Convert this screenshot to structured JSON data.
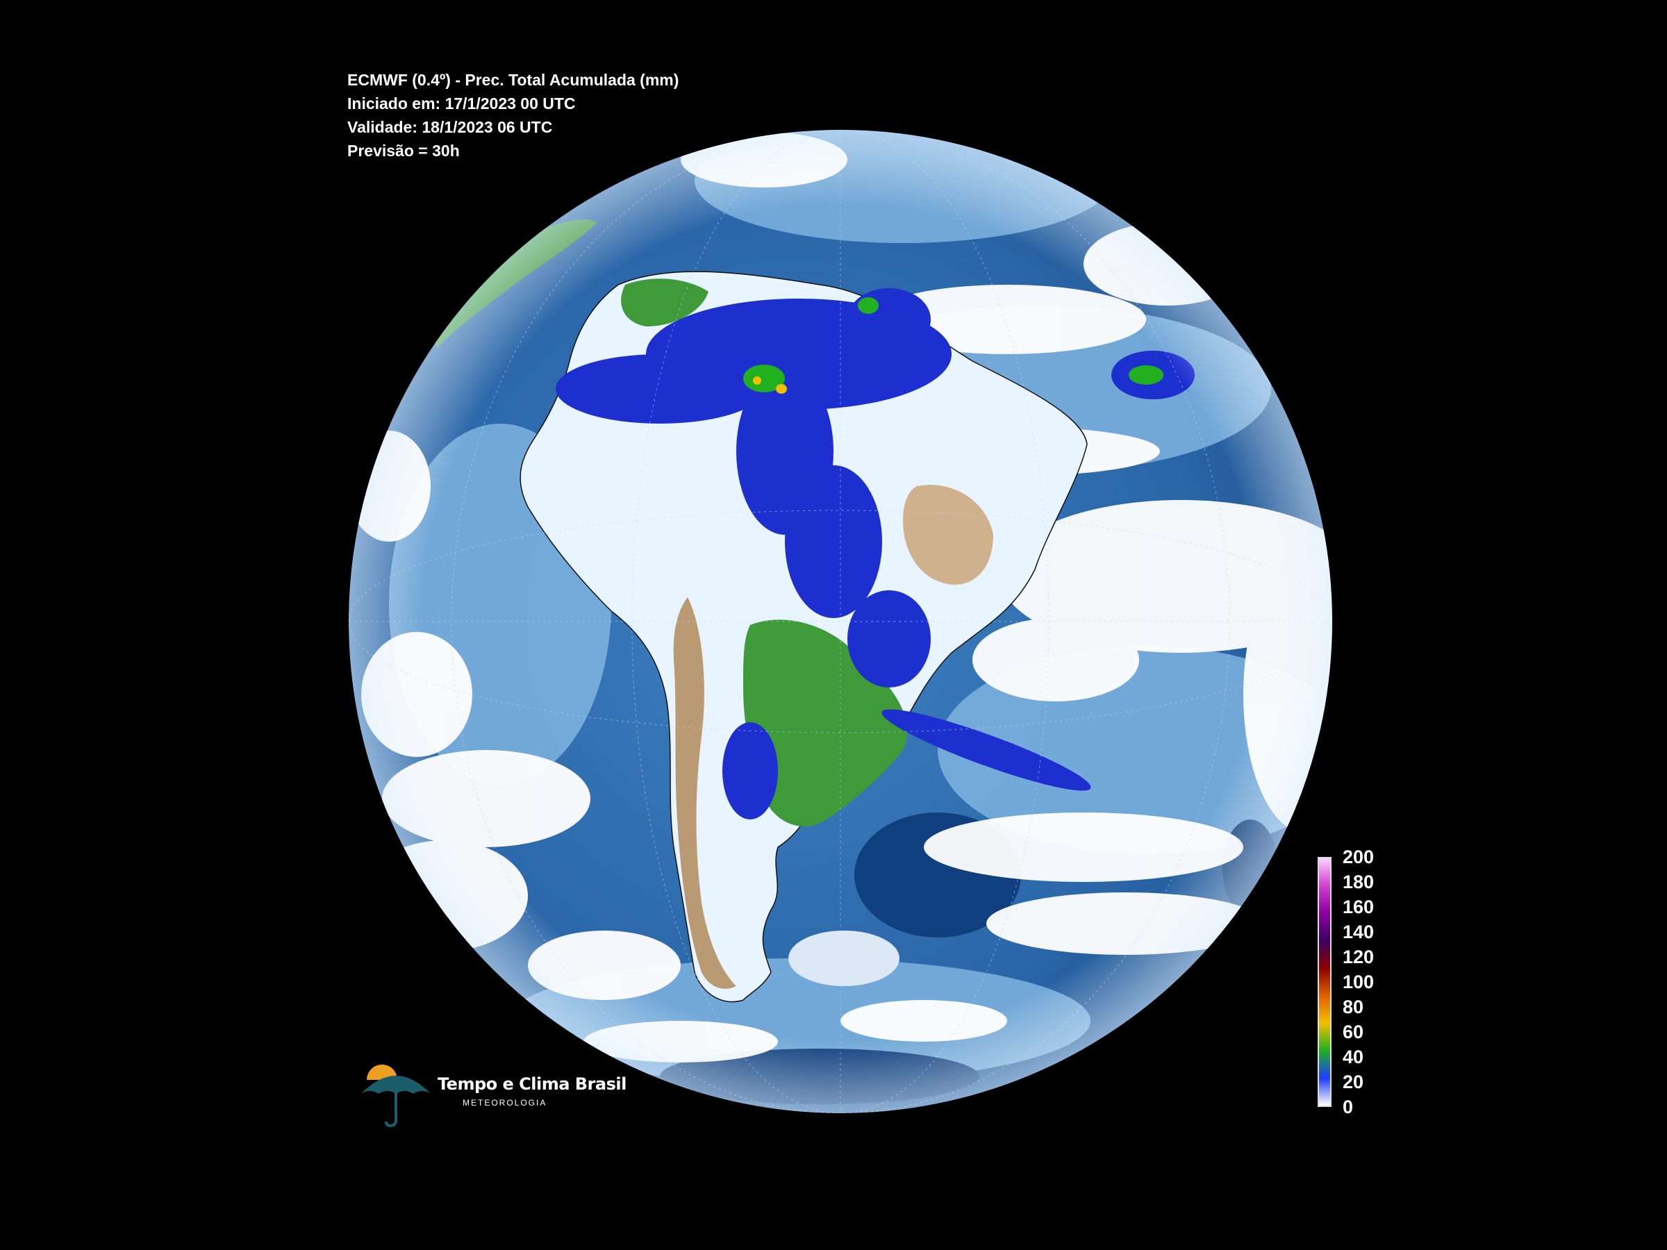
{
  "header": {
    "lines": [
      "ECMWF (0.4º) - Prec. Total Acumulada (mm)",
      "Iniciado em: 17/1/2023 00 UTC",
      "Validade: 18/1/2023 06 UTC",
      "Previsão = 30h"
    ]
  },
  "legend": {
    "ticks": [
      "200",
      "180",
      "160",
      "140",
      "120",
      "100",
      "80",
      "60",
      "40",
      "20",
      "0"
    ],
    "min": 0,
    "max": 200,
    "colors": [
      "#ffffff",
      "#1e3cff",
      "#20b020",
      "#f0c000",
      "#e06000",
      "#8b0000",
      "#3a0060",
      "#8a00a0",
      "#d040d0",
      "#ffd0ff"
    ]
  },
  "brand": {
    "name": "Tempo e Clima Brasil",
    "tagline": "METEOROLOGIA"
  },
  "colors": {
    "background": "#000000",
    "ocean_deep": "#0d3d7a",
    "ocean": "#2e6fb0",
    "ocean_light": "#7fb4e0",
    "cloud": "#ffffff",
    "rain": "#1e2fd0",
    "land_green": "#3f9a3a",
    "land_tan": "#c8a070"
  }
}
